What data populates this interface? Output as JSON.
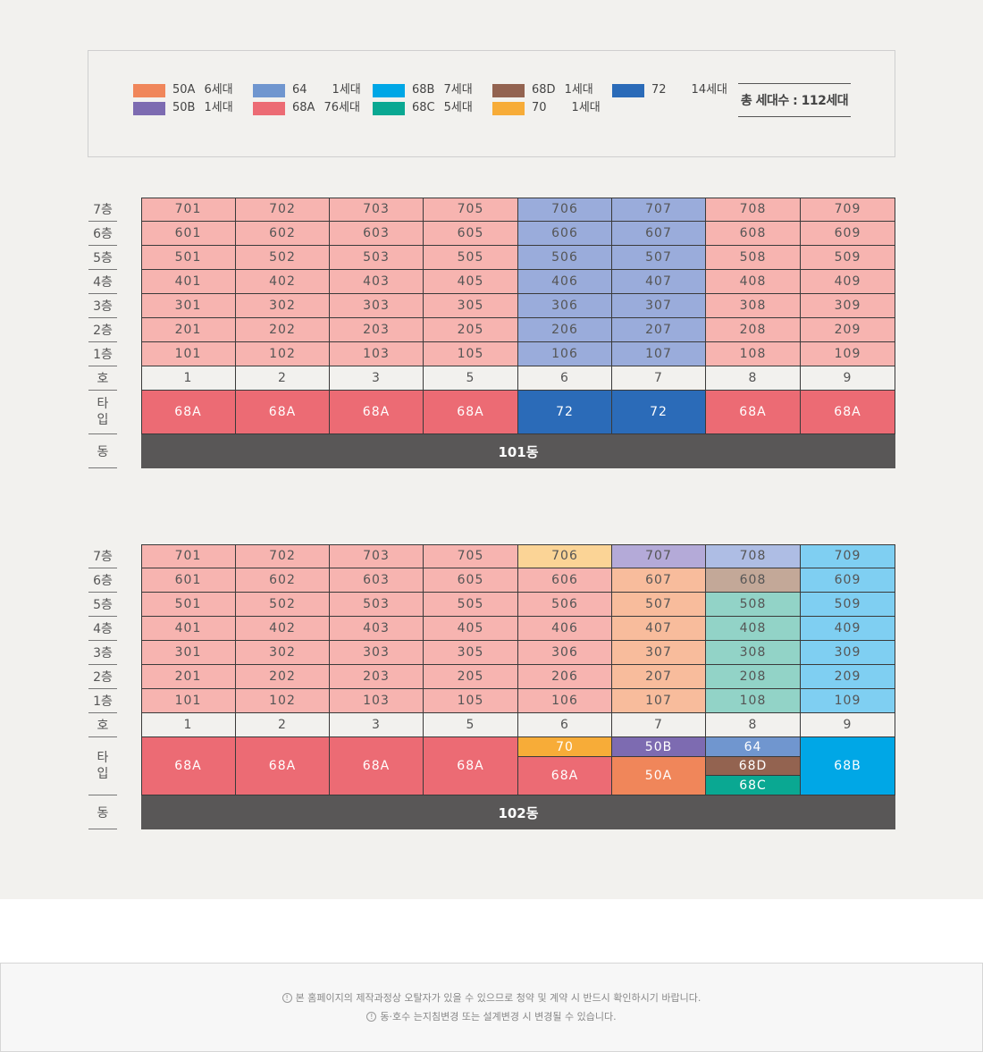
{
  "legend": {
    "items": [
      {
        "type": "50A",
        "count": "6세대",
        "color": "#f0865a"
      },
      {
        "type": "50B",
        "count": "1세대",
        "color": "#7d6bb1"
      },
      {
        "type": "64",
        "count": "1세대",
        "color": "#7096cf"
      },
      {
        "type": "68A",
        "count": "76세대",
        "color": "#ec6b74"
      },
      {
        "type": "68B",
        "count": "7세대",
        "color": "#00a7e6"
      },
      {
        "type": "68C",
        "count": "5세대",
        "color": "#0aa892"
      },
      {
        "type": "68D",
        "count": "1세대",
        "color": "#936350"
      },
      {
        "type": "70",
        "count": "1세대",
        "color": "#f7ac38"
      },
      {
        "type": "72",
        "count": "14세대",
        "color": "#2b6bb8"
      }
    ],
    "total": "총 세대수 : 112세대"
  },
  "row_labels": {
    "floors": [
      "7층",
      "6층",
      "5층",
      "4층",
      "3층",
      "2층",
      "1층"
    ],
    "ho": "호",
    "type_first": "타",
    "type_second": "입",
    "dong": "동"
  },
  "buildings": [
    {
      "name": "101동",
      "ho": [
        "1",
        "2",
        "3",
        "5",
        "6",
        "7",
        "8",
        "9"
      ],
      "floors": [
        {
          "units": [
            "701",
            "702",
            "703",
            "705",
            "706",
            "707",
            "708",
            "709"
          ],
          "colors": [
            "#f7b4b0",
            "#f7b4b0",
            "#f7b4b0",
            "#f7b4b0",
            "#9aacdb",
            "#9aacdb",
            "#f7b4b0",
            "#f7b4b0"
          ]
        },
        {
          "units": [
            "601",
            "602",
            "603",
            "605",
            "606",
            "607",
            "608",
            "609"
          ],
          "colors": [
            "#f7b4b0",
            "#f7b4b0",
            "#f7b4b0",
            "#f7b4b0",
            "#9aacdb",
            "#9aacdb",
            "#f7b4b0",
            "#f7b4b0"
          ]
        },
        {
          "units": [
            "501",
            "502",
            "503",
            "505",
            "506",
            "507",
            "508",
            "509"
          ],
          "colors": [
            "#f7b4b0",
            "#f7b4b0",
            "#f7b4b0",
            "#f7b4b0",
            "#9aacdb",
            "#9aacdb",
            "#f7b4b0",
            "#f7b4b0"
          ]
        },
        {
          "units": [
            "401",
            "402",
            "403",
            "405",
            "406",
            "407",
            "408",
            "409"
          ],
          "colors": [
            "#f7b4b0",
            "#f7b4b0",
            "#f7b4b0",
            "#f7b4b0",
            "#9aacdb",
            "#9aacdb",
            "#f7b4b0",
            "#f7b4b0"
          ]
        },
        {
          "units": [
            "301",
            "302",
            "303",
            "305",
            "306",
            "307",
            "308",
            "309"
          ],
          "colors": [
            "#f7b4b0",
            "#f7b4b0",
            "#f7b4b0",
            "#f7b4b0",
            "#9aacdb",
            "#9aacdb",
            "#f7b4b0",
            "#f7b4b0"
          ]
        },
        {
          "units": [
            "201",
            "202",
            "203",
            "205",
            "206",
            "207",
            "208",
            "209"
          ],
          "colors": [
            "#f7b4b0",
            "#f7b4b0",
            "#f7b4b0",
            "#f7b4b0",
            "#9aacdb",
            "#9aacdb",
            "#f7b4b0",
            "#f7b4b0"
          ]
        },
        {
          "units": [
            "101",
            "102",
            "103",
            "105",
            "106",
            "107",
            "108",
            "109"
          ],
          "colors": [
            "#f7b4b0",
            "#f7b4b0",
            "#f7b4b0",
            "#f7b4b0",
            "#9aacdb",
            "#9aacdb",
            "#f7b4b0",
            "#f7b4b0"
          ]
        }
      ],
      "types": [
        [
          {
            "label": "68A",
            "color": "#ec6b74"
          }
        ],
        [
          {
            "label": "68A",
            "color": "#ec6b74"
          }
        ],
        [
          {
            "label": "68A",
            "color": "#ec6b74"
          }
        ],
        [
          {
            "label": "68A",
            "color": "#ec6b74"
          }
        ],
        [
          {
            "label": "72",
            "color": "#2b6bb8"
          }
        ],
        [
          {
            "label": "72",
            "color": "#2b6bb8"
          }
        ],
        [
          {
            "label": "68A",
            "color": "#ec6b74"
          }
        ],
        [
          {
            "label": "68A",
            "color": "#ec6b74"
          }
        ]
      ]
    },
    {
      "name": "102동",
      "ho": [
        "1",
        "2",
        "3",
        "5",
        "6",
        "7",
        "8",
        "9"
      ],
      "floors": [
        {
          "units": [
            "701",
            "702",
            "703",
            "705",
            "706",
            "707",
            "708",
            "709"
          ],
          "colors": [
            "#f7b4b0",
            "#f7b4b0",
            "#f7b4b0",
            "#f7b4b0",
            "#fbd496",
            "#b4aad8",
            "#aebde4",
            "#7fcff2"
          ]
        },
        {
          "units": [
            "601",
            "602",
            "603",
            "605",
            "606",
            "607",
            "608",
            "609"
          ],
          "colors": [
            "#f7b4b0",
            "#f7b4b0",
            "#f7b4b0",
            "#f7b4b0",
            "#f7b4b0",
            "#f8bc9c",
            "#c3a898",
            "#7fcff2"
          ]
        },
        {
          "units": [
            "501",
            "502",
            "503",
            "505",
            "506",
            "507",
            "508",
            "509"
          ],
          "colors": [
            "#f7b4b0",
            "#f7b4b0",
            "#f7b4b0",
            "#f7b4b0",
            "#f7b4b0",
            "#f8bc9c",
            "#92d3c7",
            "#7fcff2"
          ]
        },
        {
          "units": [
            "401",
            "402",
            "403",
            "405",
            "406",
            "407",
            "408",
            "409"
          ],
          "colors": [
            "#f7b4b0",
            "#f7b4b0",
            "#f7b4b0",
            "#f7b4b0",
            "#f7b4b0",
            "#f8bc9c",
            "#92d3c7",
            "#7fcff2"
          ]
        },
        {
          "units": [
            "301",
            "302",
            "303",
            "305",
            "306",
            "307",
            "308",
            "309"
          ],
          "colors": [
            "#f7b4b0",
            "#f7b4b0",
            "#f7b4b0",
            "#f7b4b0",
            "#f7b4b0",
            "#f8bc9c",
            "#92d3c7",
            "#7fcff2"
          ]
        },
        {
          "units": [
            "201",
            "202",
            "203",
            "205",
            "206",
            "207",
            "208",
            "209"
          ],
          "colors": [
            "#f7b4b0",
            "#f7b4b0",
            "#f7b4b0",
            "#f7b4b0",
            "#f7b4b0",
            "#f8bc9c",
            "#92d3c7",
            "#7fcff2"
          ]
        },
        {
          "units": [
            "101",
            "102",
            "103",
            "105",
            "106",
            "107",
            "108",
            "109"
          ],
          "colors": [
            "#f7b4b0",
            "#f7b4b0",
            "#f7b4b0",
            "#f7b4b0",
            "#f7b4b0",
            "#f8bc9c",
            "#92d3c7",
            "#7fcff2"
          ]
        }
      ],
      "types": [
        [
          {
            "label": "68A",
            "color": "#ec6b74"
          }
        ],
        [
          {
            "label": "68A",
            "color": "#ec6b74"
          }
        ],
        [
          {
            "label": "68A",
            "color": "#ec6b74"
          }
        ],
        [
          {
            "label": "68A",
            "color": "#ec6b74"
          }
        ],
        [
          {
            "label": "70",
            "color": "#f7ac38"
          },
          {
            "label": "68A",
            "color": "#ec6b74"
          }
        ],
        [
          {
            "label": "50B",
            "color": "#7d6bb1"
          },
          {
            "label": "50A",
            "color": "#f0865a"
          }
        ],
        [
          {
            "label": "64",
            "color": "#7096cf"
          },
          {
            "label": "68D",
            "color": "#936350"
          },
          {
            "label": "68C",
            "color": "#0aa892"
          }
        ],
        [
          {
            "label": "68B",
            "color": "#00a7e6"
          }
        ]
      ]
    }
  ],
  "ho_row_color": "#f2f1ee",
  "dong_bar_color": "#595757",
  "notice": {
    "line1": "본 홈페이지의 제작과정상 오탈자가 있을 수 있으므로 청약 및 계약 시 반드시 확인하시기 바랍니다.",
    "line2": "동·호수 는지침변경 또는 설계변경 시 변경될 수 있습니다."
  }
}
